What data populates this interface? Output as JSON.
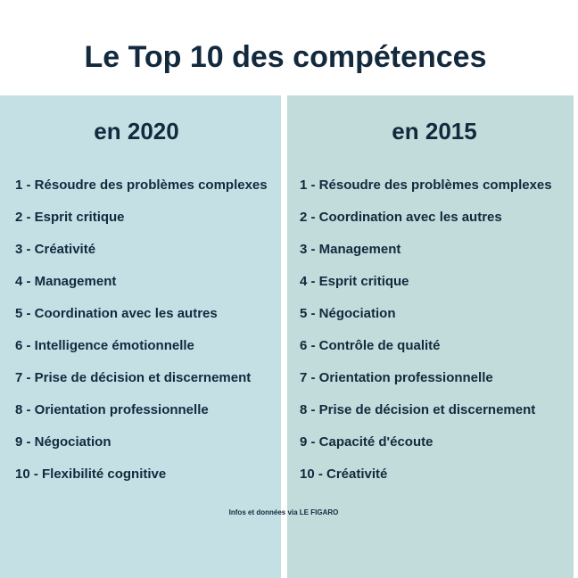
{
  "title": "Le Top 10 des compétences",
  "columns": [
    {
      "heading": "en 2020",
      "items": [
        "1 - Résoudre des problèmes complexes",
        "2 - Esprit critique",
        "3 - Créativité",
        "4 - Management",
        "5 - Coordination avec les autres",
        "6 - Intelligence émotionnelle",
        "7 - Prise de décision et discernement",
        "8 - Orientation professionnelle",
        "9 - Négociation",
        "10 - Flexibilité cognitive"
      ]
    },
    {
      "heading": "en 2015",
      "items": [
        "1 - Résoudre des problèmes complexes",
        "2 - Coordination avec les autres",
        "3 - Management",
        "4 - Esprit critique",
        "5 - Négociation",
        "6 - Contrôle de qualité",
        "7 - Orientation professionnelle",
        "8 - Prise de décision et discernement",
        "9 - Capacité d'écoute",
        "10 - Créativité"
      ]
    }
  ],
  "source": "Infos et données via LE FIGARO",
  "colors": {
    "text": "#13293d",
    "left_panel": "#c5e0e5",
    "right_panel": "#c1dcdb",
    "background": "#ffffff"
  }
}
